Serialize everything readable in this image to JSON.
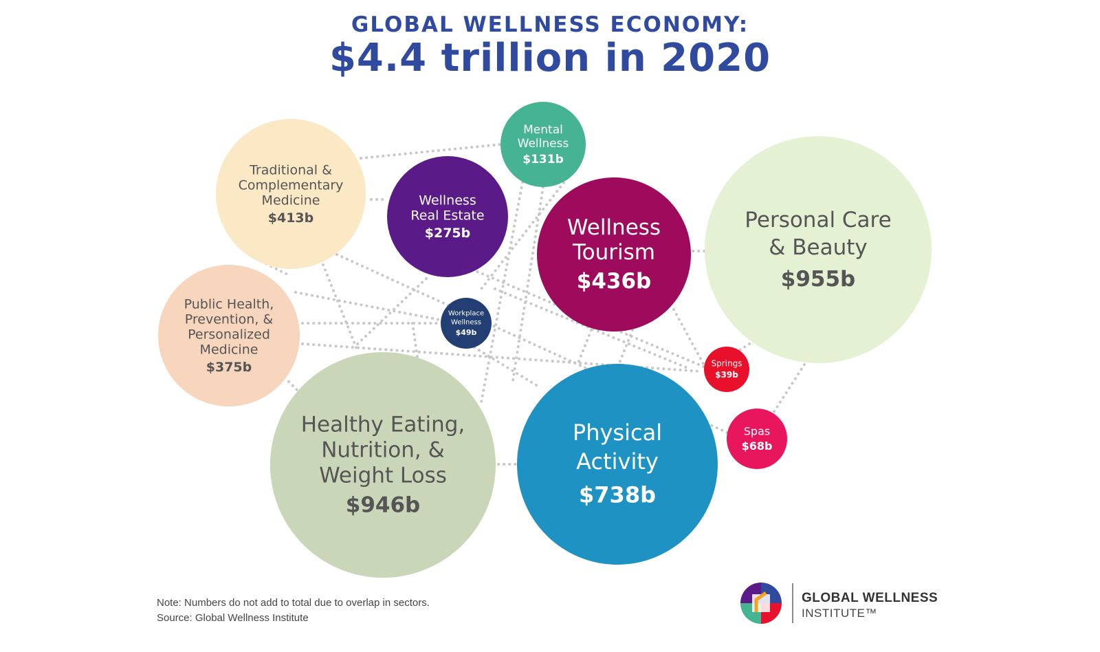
{
  "header": {
    "title": "GLOBAL WELLNESS ECONOMY:",
    "subtitle": "$4.4 trillion in 2020"
  },
  "chart_data": {
    "type": "bubble",
    "title": "GLOBAL WELLNESS ECONOMY:",
    "subtitle": "$4.4 trillion in 2020",
    "unit": "billion USD",
    "sectors": [
      {
        "label": "Personal Care & Beauty",
        "value": 955,
        "value_label": "$955b",
        "color": "#e4f1d3",
        "text_color": "#555555"
      },
      {
        "label": "Healthy Eating, Nutrition, & Weight Loss",
        "value": 946,
        "value_label": "$946b",
        "color": "#cad6b8",
        "text_color": "#555555"
      },
      {
        "label": "Physical Activity",
        "value": 738,
        "value_label": "$738b",
        "color": "#1e93c3",
        "text_color": "#ffffff"
      },
      {
        "label": "Wellness Tourism",
        "value": 436,
        "value_label": "$436b",
        "color": "#9f0b5c",
        "text_color": "#ffffff"
      },
      {
        "label": "Traditional & Complementary Medicine",
        "value": 413,
        "value_label": "$413b",
        "color": "#fbe9c5",
        "text_color": "#555555"
      },
      {
        "label": "Public Health, Prevention, & Personalized Medicine",
        "value": 375,
        "value_label": "$375b",
        "color": "#f8d6bd",
        "text_color": "#555555"
      },
      {
        "label": "Wellness Real Estate",
        "value": 275,
        "value_label": "$275b",
        "color": "#5a1a88",
        "text_color": "#ffffff"
      },
      {
        "label": "Mental Wellness",
        "value": 131,
        "value_label": "$131b",
        "color": "#46b393",
        "text_color": "#ffffff"
      },
      {
        "label": "Spas",
        "value": 68,
        "value_label": "$68b",
        "color": "#e8175d",
        "text_color": "#ffffff"
      },
      {
        "label": "Workplace Wellness",
        "value": 49,
        "value_label": "$49b",
        "color": "#233e73",
        "text_color": "#ffffff"
      },
      {
        "label": "Springs",
        "value": 39,
        "value_label": "$39b",
        "color": "#e8102b",
        "text_color": "#ffffff"
      }
    ]
  },
  "footer": {
    "note": "Note: Numbers do not add to total due to overlap in sectors.",
    "source": "Source: Global Wellness Institute"
  },
  "logo": {
    "name_line1": "GLOBAL WELLNESS",
    "name_line2": "INSTITUTE™",
    "colors": [
      "#2f4a9e",
      "#e8102b",
      "#46b393",
      "#5a1a88",
      "#f3a21b"
    ]
  }
}
